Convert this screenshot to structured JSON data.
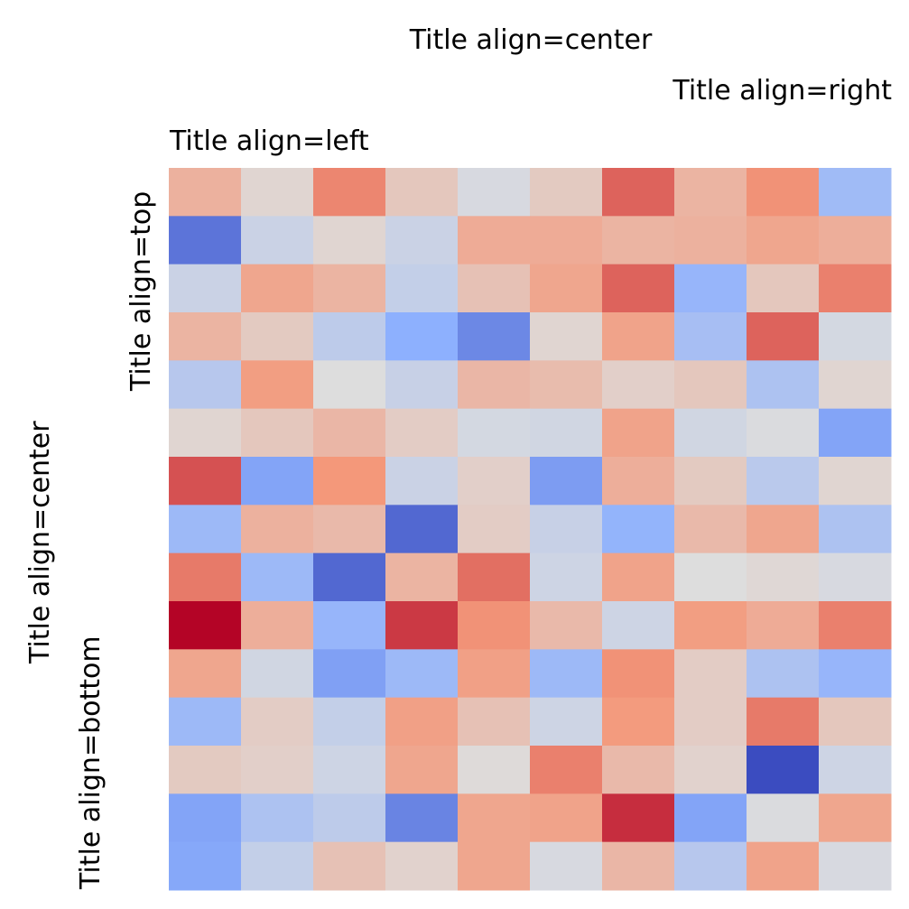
{
  "chart_data": {
    "type": "heatmap",
    "colormap": "coolwarm",
    "value_range": [
      0,
      1
    ],
    "titles": {
      "center": "Title align=center",
      "right": "Title align=right",
      "left": "Title align=left"
    },
    "ylabels": {
      "top": "Title align=top",
      "center": "Title align=center",
      "bottom": "Title align=bottom"
    },
    "grid": false,
    "legend": "none",
    "rows": 15,
    "cols": 10,
    "values": [
      [
        0.66,
        0.53,
        0.78,
        0.58,
        0.48,
        0.57,
        0.84,
        0.65,
        0.76,
        0.31
      ],
      [
        0.1,
        0.44,
        0.53,
        0.44,
        0.68,
        0.68,
        0.65,
        0.66,
        0.7,
        0.67
      ],
      [
        0.44,
        0.7,
        0.65,
        0.42,
        0.6,
        0.7,
        0.84,
        0.28,
        0.58,
        0.79
      ],
      [
        0.65,
        0.57,
        0.4,
        0.25,
        0.15,
        0.53,
        0.71,
        0.33,
        0.84,
        0.47
      ],
      [
        0.38,
        0.73,
        0.5,
        0.43,
        0.64,
        0.62,
        0.55,
        0.58,
        0.35,
        0.53
      ],
      [
        0.53,
        0.58,
        0.64,
        0.56,
        0.47,
        0.46,
        0.71,
        0.46,
        0.49,
        0.22
      ],
      [
        0.87,
        0.22,
        0.75,
        0.44,
        0.55,
        0.2,
        0.67,
        0.57,
        0.39,
        0.53
      ],
      [
        0.3,
        0.66,
        0.63,
        0.07,
        0.56,
        0.43,
        0.27,
        0.63,
        0.7,
        0.35
      ],
      [
        0.8,
        0.3,
        0.07,
        0.65,
        0.82,
        0.45,
        0.71,
        0.5,
        0.52,
        0.48
      ],
      [
        1.0,
        0.67,
        0.28,
        0.91,
        0.76,
        0.63,
        0.45,
        0.73,
        0.68,
        0.79
      ],
      [
        0.7,
        0.46,
        0.21,
        0.3,
        0.72,
        0.3,
        0.76,
        0.56,
        0.35,
        0.28
      ],
      [
        0.3,
        0.56,
        0.42,
        0.72,
        0.6,
        0.45,
        0.74,
        0.56,
        0.8,
        0.58
      ],
      [
        0.57,
        0.55,
        0.45,
        0.7,
        0.51,
        0.79,
        0.63,
        0.54,
        0.0,
        0.45
      ],
      [
        0.22,
        0.35,
        0.4,
        0.14,
        0.7,
        0.71,
        0.93,
        0.22,
        0.49,
        0.7
      ],
      [
        0.23,
        0.42,
        0.6,
        0.54,
        0.7,
        0.48,
        0.64,
        0.38,
        0.71,
        0.48
      ]
    ]
  }
}
